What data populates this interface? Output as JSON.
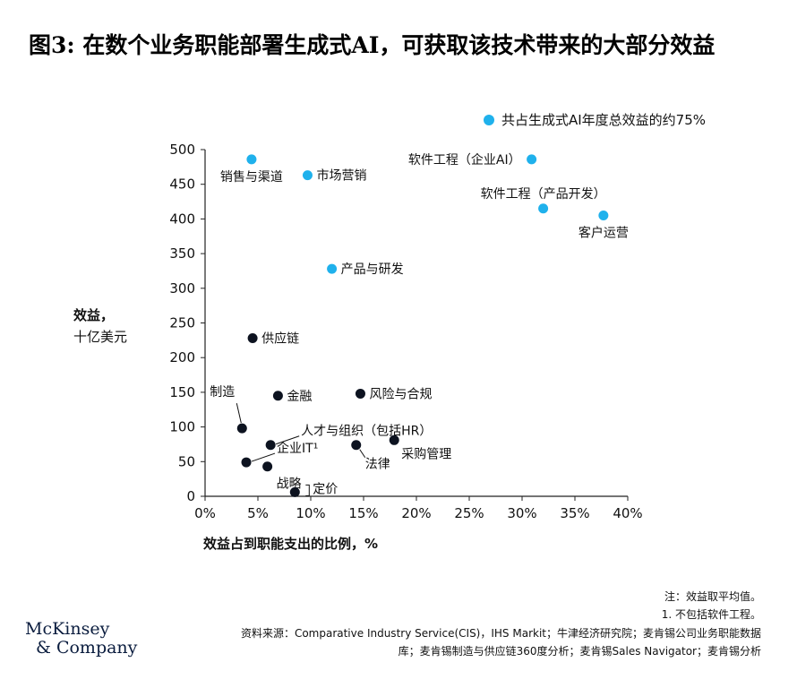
{
  "title": "图3: 在数个业务职能部署生成式AI，可获取该技术带来的大部分效益",
  "legend": {
    "label": "共占生成式AI年度总效益的约75%",
    "color": "#1fb1ec"
  },
  "ylabel": {
    "bold": "效益，",
    "normal": "十亿美元"
  },
  "xlabel": "效益占到职能支出的比例，%",
  "notes": {
    "line1": "注：效益取平均值。",
    "line2": "1. 不包括软件工程。"
  },
  "sources": "资料来源：Comparative Industry Service(CIS)，IHS Markit；牛津经济研究院；麦肯锡公司业务职能数据库；麦肯锡制造与供应链360度分析；麦肯锡Sales Navigator；麦肯锡分析",
  "logo": {
    "line1": "McKinsey",
    "line2": "& Company"
  },
  "colors": {
    "highlight": "#1fb1ec",
    "other": "#0d1320",
    "axis": "#222222"
  },
  "chart_data": {
    "type": "scatter",
    "xlim": [
      0,
      40
    ],
    "ylim": [
      0,
      500
    ],
    "x_ticks": [
      0,
      5,
      10,
      15,
      20,
      25,
      30,
      35,
      40
    ],
    "x_tick_labels": [
      "0%",
      "5%",
      "10%",
      "15%",
      "20%",
      "25%",
      "30%",
      "35%",
      "40%"
    ],
    "y_ticks": [
      0,
      50,
      100,
      150,
      200,
      250,
      300,
      350,
      400,
      450,
      500
    ],
    "y_tick_labels": [
      "0",
      "50",
      "100",
      "150",
      "200",
      "250",
      "300",
      "350",
      "400",
      "450",
      "500"
    ],
    "grid": false,
    "points": [
      {
        "label": "销售与渠道",
        "x": 4.4,
        "y": 486,
        "highlight": true,
        "anchor": "below"
      },
      {
        "label": "市场营销",
        "x": 9.7,
        "y": 463,
        "highlight": true,
        "anchor": "right"
      },
      {
        "label": "软件工程（企业AI）",
        "x": 30.9,
        "y": 486,
        "highlight": true,
        "anchor": "left"
      },
      {
        "label": "软件工程（产品开发）",
        "x": 32.0,
        "y": 415,
        "highlight": true,
        "anchor": "above"
      },
      {
        "label": "客户运营",
        "x": 37.7,
        "y": 405,
        "highlight": true,
        "anchor": "below"
      },
      {
        "label": "产品与研发",
        "x": 12.0,
        "y": 328,
        "highlight": true,
        "anchor": "right"
      },
      {
        "label": "供应链",
        "x": 4.5,
        "y": 228,
        "highlight": false,
        "anchor": "right"
      },
      {
        "label": "金融",
        "x": 6.9,
        "y": 145,
        "highlight": false,
        "anchor": "right"
      },
      {
        "label": "风险与合规",
        "x": 14.7,
        "y": 148,
        "highlight": false,
        "anchor": "right"
      },
      {
        "label": "制造",
        "x": 3.5,
        "y": 98,
        "highlight": false,
        "anchor": "leader-up"
      },
      {
        "label": "人才与组织（包括HR）",
        "x": 6.2,
        "y": 74,
        "highlight": false,
        "anchor": "leader-right"
      },
      {
        "label": "采购管理",
        "x": 17.9,
        "y": 81,
        "highlight": false,
        "anchor": "right-low"
      },
      {
        "label": "法律",
        "x": 14.3,
        "y": 74,
        "highlight": false,
        "anchor": "leader-down"
      },
      {
        "label": "企业IT¹",
        "x": 3.9,
        "y": 49,
        "highlight": false,
        "anchor": "leader-right"
      },
      {
        "label": "战略",
        "x": 5.9,
        "y": 43,
        "highlight": false,
        "anchor": "below-right"
      },
      {
        "label": "定价",
        "x": 8.5,
        "y": 6,
        "highlight": false,
        "anchor": "bracket-right"
      }
    ]
  }
}
